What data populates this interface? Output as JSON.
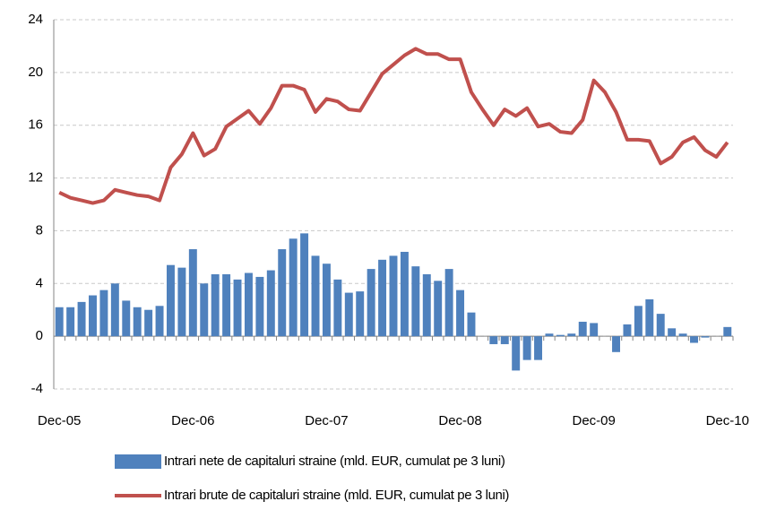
{
  "chart_data": {
    "type": "bar_line",
    "categories": [
      "Dec-05",
      null,
      null,
      null,
      null,
      null,
      null,
      null,
      null,
      null,
      null,
      null,
      "Dec-06",
      null,
      null,
      null,
      null,
      null,
      null,
      null,
      null,
      null,
      null,
      null,
      "Dec-07",
      null,
      null,
      null,
      null,
      null,
      null,
      null,
      null,
      null,
      null,
      null,
      "Dec-08",
      null,
      null,
      null,
      null,
      null,
      null,
      null,
      null,
      null,
      null,
      null,
      "Dec-09",
      null,
      null,
      null,
      null,
      null,
      null,
      null,
      null,
      null,
      null,
      null,
      "Dec-10"
    ],
    "series": [
      {
        "name": "Intrari nete de capitaluri straine (mld. EUR, cumulat pe 3 luni)",
        "type": "bar",
        "color": "#4f81bd",
        "values": [
          2.2,
          2.2,
          2.6,
          3.1,
          3.5,
          4.0,
          2.7,
          2.2,
          2.0,
          2.3,
          5.4,
          5.2,
          6.6,
          4.0,
          4.7,
          4.7,
          4.3,
          4.8,
          4.5,
          5.0,
          6.6,
          7.4,
          7.8,
          6.1,
          5.5,
          4.3,
          3.3,
          3.4,
          5.1,
          5.8,
          6.1,
          6.4,
          5.3,
          4.7,
          4.2,
          5.1,
          3.5,
          1.8,
          0,
          -0.6,
          -0.6,
          -2.6,
          -1.8,
          -1.8,
          0.2,
          0.1,
          0.2,
          1.1,
          1.0,
          0,
          -1.2,
          0.9,
          2.3,
          2.8,
          1.7,
          0.6,
          0.2,
          -0.5,
          -0.1,
          0,
          0.7
        ]
      },
      {
        "name": "Intrari brute de capitaluri straine (mld. EUR, cumulat pe 3 luni)",
        "type": "line",
        "color": "#c0504d",
        "values": [
          10.9,
          10.5,
          10.3,
          10.1,
          10.3,
          11.1,
          10.9,
          10.7,
          10.6,
          10.3,
          12.8,
          13.8,
          15.4,
          13.7,
          14.2,
          15.9,
          16.5,
          17.1,
          16.1,
          17.3,
          19.0,
          19.0,
          18.7,
          17.0,
          18.0,
          17.8,
          17.2,
          17.1,
          18.5,
          19.9,
          20.6,
          21.3,
          21.8,
          21.4,
          21.4,
          21.0,
          21.0,
          18.5,
          17.2,
          16.0,
          17.2,
          16.7,
          17.3,
          15.9,
          16.1,
          15.5,
          15.4,
          16.4,
          19.4,
          18.5,
          17.0,
          14.9,
          14.9,
          14.8,
          13.1,
          13.6,
          14.7,
          15.1,
          14.1,
          13.6,
          14.7
        ]
      }
    ],
    "ylim": [
      -4,
      24
    ],
    "yticks": [
      -4,
      0,
      4,
      8,
      12,
      16,
      20,
      24
    ],
    "grid": true,
    "legend": "bottom"
  }
}
